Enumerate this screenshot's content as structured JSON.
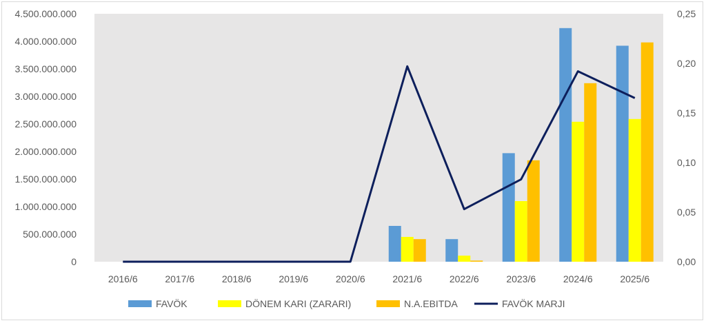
{
  "chart_data": {
    "type": "bar",
    "categories": [
      "2016/6",
      "2017/6",
      "2018/6",
      "2019/6",
      "2020/6",
      "2021/6",
      "2022/6",
      "2023/6",
      "2024/6",
      "2025/6"
    ],
    "series": [
      {
        "name": "FAVÖK",
        "kind": "bar",
        "axis": "left",
        "color": "#5b9bd5",
        "values": [
          0,
          0,
          0,
          0,
          0,
          650000000,
          410000000,
          1970000000,
          4240000000,
          3920000000
        ]
      },
      {
        "name": "DÖNEM KARI (ZARARI)",
        "kind": "bar",
        "axis": "left",
        "color": "#ffff00",
        "values": [
          0,
          0,
          0,
          0,
          0,
          450000000,
          110000000,
          1100000000,
          2540000000,
          2590000000
        ]
      },
      {
        "name": "N.A.EBITDA",
        "kind": "bar",
        "axis": "left",
        "color": "#ffc000",
        "values": [
          0,
          0,
          0,
          0,
          0,
          410000000,
          20000000,
          1840000000,
          3240000000,
          3980000000
        ]
      },
      {
        "name": "FAVÖK MARJI",
        "kind": "line",
        "axis": "right",
        "color": "#0d1f5c",
        "values": [
          0,
          0,
          0,
          0,
          0,
          0.197,
          0.053,
          0.083,
          0.192,
          0.165
        ]
      }
    ],
    "left_axis": {
      "min": 0,
      "max": 4500000000,
      "step": 500000000,
      "tick_labels": [
        "0",
        "500.000.000",
        "1.000.000.000",
        "1.500.000.000",
        "2.000.000.000",
        "2.500.000.000",
        "3.000.000.000",
        "3.500.000.000",
        "4.000.000.000",
        "4.500.000.000"
      ]
    },
    "right_axis": {
      "min": 0,
      "max": 0.25,
      "step": 0.05,
      "tick_labels": [
        "0,00",
        "0,05",
        "0,10",
        "0,15",
        "0,20",
        "0,25"
      ]
    },
    "plot_background": "#e7e6e6",
    "legend_position": "bottom"
  }
}
